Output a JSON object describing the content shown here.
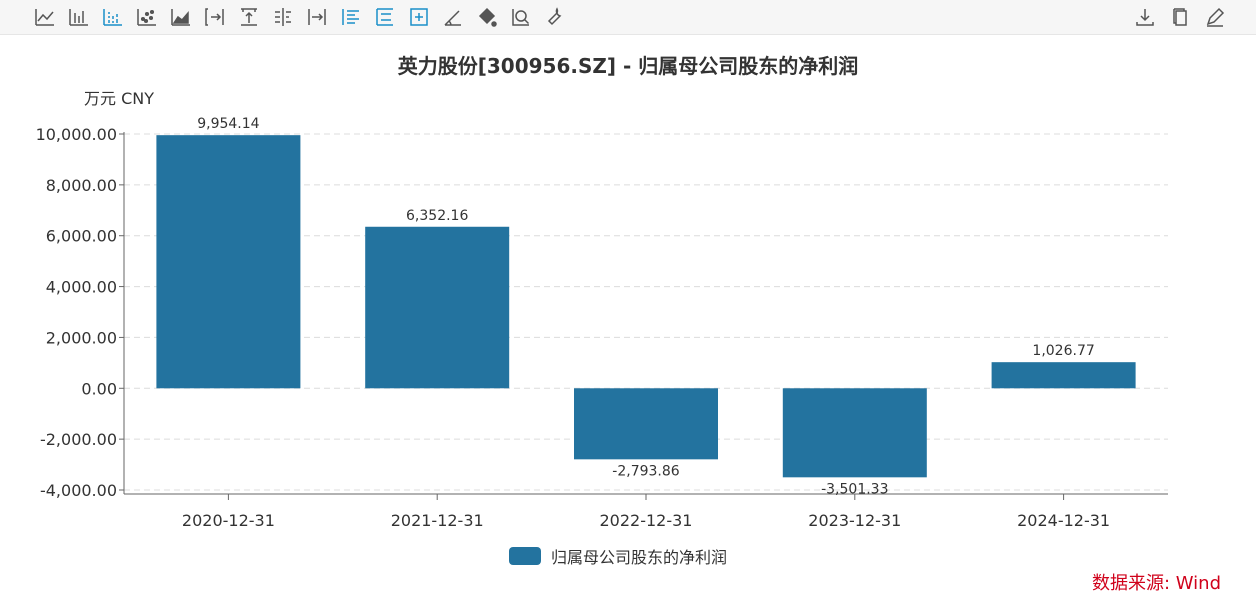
{
  "toolbar": {
    "left_icons": [
      "line-chart-icon",
      "bar-chart-icon",
      "stacked-bar-icon",
      "scatter-icon",
      "area-chart-icon",
      "bracket-right-icon",
      "align-top-icon",
      "align-center-icon",
      "arrow-right-bar-icon",
      "list-left-icon",
      "list-indent-icon",
      "add-box-icon",
      "angle-icon",
      "paint-bucket-icon",
      "zoom-icon",
      "wrench-icon"
    ],
    "right_icons": [
      "download-icon",
      "copy-icon",
      "edit-icon"
    ],
    "active_color": "#1a8fc9",
    "icon_color": "#555555"
  },
  "title": "英力股份[300956.SZ] - 归属母公司股东的净利润",
  "unit_label": "万元  CNY",
  "source": "数据来源: Wind",
  "legend": {
    "label": "归属母公司股东的净利润",
    "color": "#23739f"
  },
  "chart_data": {
    "type": "bar",
    "title": "英力股份[300956.SZ] - 归属母公司股东的净利润",
    "ylabel": "万元  CNY",
    "xlabel": "",
    "categories": [
      "2020-12-31",
      "2021-12-31",
      "2022-12-31",
      "2023-12-31",
      "2024-12-31"
    ],
    "series": [
      {
        "name": "归属母公司股东的净利润",
        "values": [
          9954.14,
          6352.16,
          -2793.86,
          -3501.33,
          1026.77
        ],
        "color": "#23739f"
      }
    ],
    "data_labels": [
      "9,954.14",
      "6,352.16",
      "-2,793.86",
      "-3,501.33",
      "1,026.77"
    ],
    "y_ticks": [
      "10,000.00",
      "8,000.00",
      "6,000.00",
      "4,000.00",
      "2,000.00",
      "0.00",
      "-2,000.00",
      "-4,000.00"
    ],
    "y_tick_values": [
      10000,
      8000,
      6000,
      4000,
      2000,
      0,
      -2000,
      -4000
    ],
    "ylim": [
      -4000,
      10000
    ],
    "grid": true,
    "legend_position": "bottom-center"
  }
}
